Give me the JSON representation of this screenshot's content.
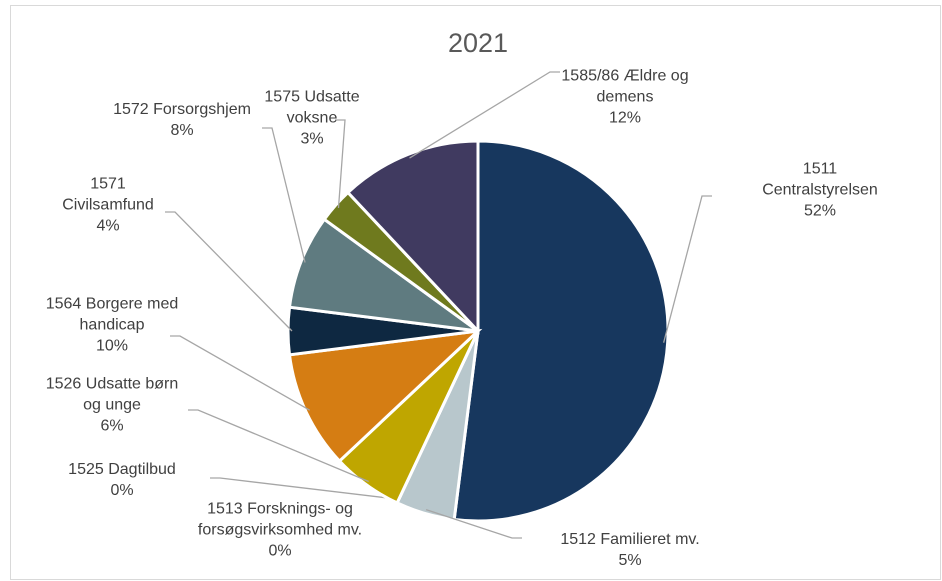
{
  "chart_data": {
    "type": "pie",
    "title": "2021",
    "categories": [
      "1511 Centralstyrelsen",
      "1512 Familieret mv.",
      "1513 Forsknings- og forsøgsvirksomhed mv.",
      "1525 Dagtilbud",
      "1526 Udsatte børn og unge",
      "1564 Borgere med handicap",
      "1571 Civilsamfund",
      "1572 Forsorgshjem",
      "1575 Udsatte voksne",
      "1585/86 Ældre og demens"
    ],
    "values": [
      52,
      5,
      0,
      0,
      6,
      10,
      4,
      8,
      3,
      12
    ],
    "value_labels": [
      "52%",
      "5%",
      "0%",
      "0%",
      "6%",
      "10%",
      "4%",
      "8%",
      "3%",
      "12%"
    ],
    "colors": [
      "#17375e",
      "#b8c7cc",
      "#8aa0a8",
      "#a6a6a6",
      "#bfa600",
      "#d57d13",
      "#0e2841",
      "#5f7b80",
      "#6f7a1e",
      "#403a60"
    ]
  }
}
